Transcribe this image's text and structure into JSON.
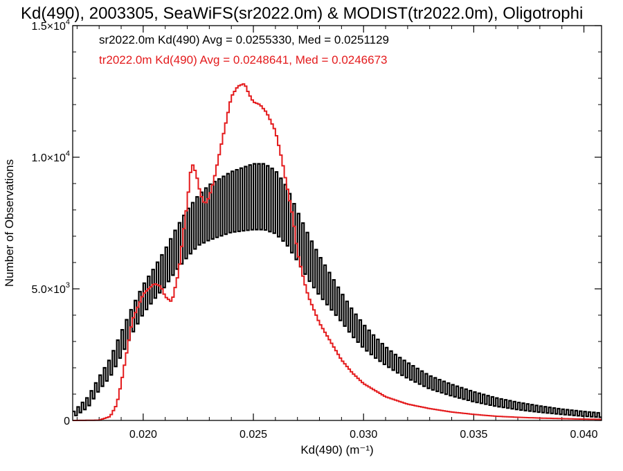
{
  "chart_data": {
    "type": "line",
    "title": "Kd(490), 2003305, SeaWiFS(sr2022.0m) & MODIST(tr2022.0m), Oligotrophi",
    "xlabel": "Kd(490) (m⁻¹)",
    "ylabel": "Number of Observations",
    "xlim": [
      0.0168,
      0.0408
    ],
    "ylim": [
      0,
      15000
    ],
    "xticks": [
      {
        "value": 0.02,
        "label": "0.020"
      },
      {
        "value": 0.025,
        "label": "0.025"
      },
      {
        "value": 0.03,
        "label": "0.030"
      },
      {
        "value": 0.035,
        "label": "0.035"
      },
      {
        "value": 0.04,
        "label": "0.040"
      }
    ],
    "yticks": [
      {
        "value": 0,
        "mant": "0",
        "exp": ""
      },
      {
        "value": 5000,
        "mant": "5.0×10",
        "exp": "3"
      },
      {
        "value": 10000,
        "mant": "1.0×10",
        "exp": "4"
      },
      {
        "value": 15000,
        "mant": "1.5×10",
        "exp": "4"
      }
    ],
    "grid": false,
    "legend": [
      {
        "text": "sr2022.0m Kd(490) Avg = 0.0255330, Med = 0.0251129",
        "color": "#000000"
      },
      {
        "text": "tr2022.0m Kd(490) Avg = 0.0248641, Med = 0.0246673",
        "color": "#e41a1c"
      }
    ],
    "series": [
      {
        "color": "#000000",
        "style": "step-oscillating",
        "x": [
          0.0168,
          0.0175,
          0.018,
          0.0185,
          0.019,
          0.0195,
          0.02,
          0.0205,
          0.021,
          0.0215,
          0.022,
          0.0225,
          0.023,
          0.0235,
          0.024,
          0.0245,
          0.025,
          0.0255,
          0.026,
          0.0265,
          0.027,
          0.0275,
          0.028,
          0.0285,
          0.029,
          0.0295,
          0.03,
          0.0305,
          0.031,
          0.0315,
          0.032,
          0.033,
          0.034,
          0.035,
          0.036,
          0.037,
          0.038,
          0.039,
          0.04,
          0.0408
        ],
        "y": [
          200,
          700,
          1400,
          2000,
          2900,
          3800,
          4600,
          5200,
          5800,
          6500,
          7100,
          7600,
          7900,
          8100,
          8300,
          8400,
          8500,
          8500,
          8300,
          7800,
          7000,
          6200,
          5500,
          4900,
          4300,
          3700,
          3200,
          2800,
          2450,
          2150,
          1900,
          1450,
          1150,
          900,
          700,
          550,
          430,
          330,
          250,
          200
        ],
        "amp": [
          100,
          200,
          250,
          350,
          450,
          500,
          550,
          600,
          700,
          800,
          900,
          950,
          1050,
          1100,
          1150,
          1200,
          1250,
          1250,
          1200,
          1100,
          950,
          850,
          750,
          650,
          550,
          500,
          450,
          400,
          350,
          320,
          300,
          250,
          220,
          190,
          160,
          140,
          120,
          100,
          90,
          80
        ]
      },
      {
        "color": "#e41a1c",
        "style": "step",
        "x": [
          0.0168,
          0.018,
          0.0185,
          0.0188,
          0.019,
          0.0193,
          0.0195,
          0.02,
          0.0205,
          0.0208,
          0.021,
          0.0213,
          0.0216,
          0.022,
          0.0222,
          0.0224,
          0.0226,
          0.0228,
          0.023,
          0.0232,
          0.0235,
          0.0238,
          0.024,
          0.0243,
          0.0246,
          0.0248,
          0.025,
          0.0253,
          0.0256,
          0.026,
          0.0263,
          0.0265,
          0.0268,
          0.027,
          0.0273,
          0.0275,
          0.028,
          0.0285,
          0.029,
          0.0295,
          0.03,
          0.0305,
          0.031,
          0.0315,
          0.032,
          0.033,
          0.034,
          0.035,
          0.036,
          0.037,
          0.038,
          0.039,
          0.04,
          0.0408
        ],
        "y": [
          0,
          10,
          150,
          600,
          1400,
          2800,
          3800,
          4800,
          5200,
          5100,
          4700,
          4500,
          5600,
          8300,
          9800,
          9400,
          8600,
          8200,
          8500,
          9100,
          10300,
          11500,
          12300,
          12700,
          12800,
          12400,
          12100,
          12000,
          11700,
          11000,
          9900,
          9000,
          7700,
          6400,
          5300,
          4700,
          3700,
          3000,
          2300,
          1800,
          1400,
          1150,
          900,
          760,
          620,
          450,
          320,
          230,
          160,
          120,
          90,
          70,
          50,
          40
        ]
      }
    ]
  }
}
